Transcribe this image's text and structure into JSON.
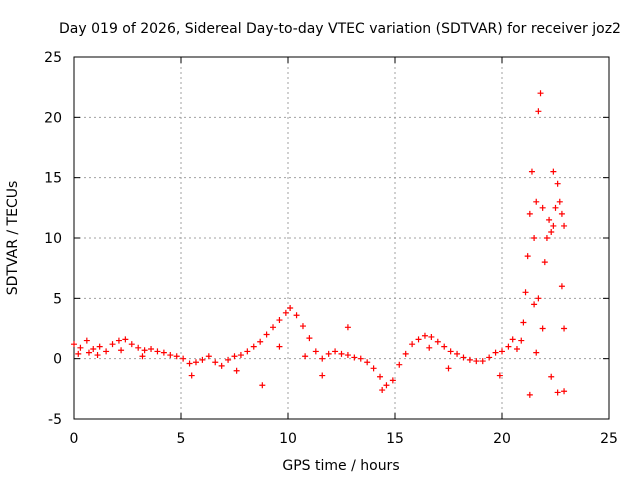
{
  "chart_data": {
    "type": "scatter",
    "title": "Day 019 of 2026, Sidereal Day-to-day VTEC variation (SDTVAR) for receiver joz2",
    "xlabel": "GPS time / hours",
    "ylabel": "SDTVAR / TECUs",
    "xlim": [
      0,
      25
    ],
    "ylim": [
      -5,
      25
    ],
    "x_ticks": [
      "0",
      "5",
      "10",
      "15",
      "20",
      "25"
    ],
    "y_ticks": [
      "-5",
      "0",
      "5",
      "10",
      "15",
      "20",
      "25"
    ],
    "grid": true,
    "marker": "+",
    "series_color": "#ff0000",
    "series": [
      {
        "name": "joz2",
        "points": [
          [
            0.0,
            1.2
          ],
          [
            0.3,
            0.9
          ],
          [
            0.6,
            1.5
          ],
          [
            0.9,
            0.8
          ],
          [
            1.2,
            1.0
          ],
          [
            1.5,
            0.6
          ],
          [
            1.8,
            1.2
          ],
          [
            2.1,
            1.5
          ],
          [
            2.4,
            1.6
          ],
          [
            2.7,
            1.2
          ],
          [
            3.0,
            0.9
          ],
          [
            3.3,
            0.7
          ],
          [
            3.6,
            0.8
          ],
          [
            3.9,
            0.6
          ],
          [
            4.2,
            0.5
          ],
          [
            4.5,
            0.3
          ],
          [
            4.8,
            0.2
          ],
          [
            5.1,
            0.0
          ],
          [
            5.4,
            -0.4
          ],
          [
            5.7,
            -0.3
          ],
          [
            6.0,
            -0.1
          ],
          [
            6.3,
            0.2
          ],
          [
            6.6,
            -0.3
          ],
          [
            6.9,
            -0.6
          ],
          [
            7.2,
            -0.1
          ],
          [
            7.5,
            0.2
          ],
          [
            7.8,
            0.3
          ],
          [
            8.1,
            0.6
          ],
          [
            8.4,
            1.0
          ],
          [
            8.7,
            1.4
          ],
          [
            9.0,
            2.0
          ],
          [
            9.3,
            2.6
          ],
          [
            9.6,
            3.2
          ],
          [
            9.9,
            3.8
          ],
          [
            10.1,
            4.2
          ],
          [
            10.4,
            3.6
          ],
          [
            10.7,
            2.7
          ],
          [
            11.0,
            1.7
          ],
          [
            11.3,
            0.6
          ],
          [
            11.6,
            0.0
          ],
          [
            11.9,
            0.4
          ],
          [
            12.2,
            0.6
          ],
          [
            12.5,
            0.4
          ],
          [
            12.8,
            0.3
          ],
          [
            13.1,
            0.1
          ],
          [
            13.4,
            0.0
          ],
          [
            13.7,
            -0.3
          ],
          [
            14.0,
            -0.8
          ],
          [
            14.3,
            -1.5
          ],
          [
            14.6,
            -2.2
          ],
          [
            14.9,
            -1.8
          ],
          [
            15.2,
            -0.5
          ],
          [
            15.5,
            0.4
          ],
          [
            15.8,
            1.2
          ],
          [
            16.1,
            1.6
          ],
          [
            16.4,
            1.9
          ],
          [
            16.7,
            1.8
          ],
          [
            17.0,
            1.4
          ],
          [
            17.3,
            1.0
          ],
          [
            17.6,
            0.6
          ],
          [
            17.9,
            0.4
          ],
          [
            18.2,
            0.1
          ],
          [
            18.5,
            -0.1
          ],
          [
            18.8,
            -0.2
          ],
          [
            19.1,
            -0.2
          ],
          [
            19.4,
            0.1
          ],
          [
            19.7,
            0.5
          ],
          [
            20.0,
            0.6
          ],
          [
            20.3,
            1.0
          ],
          [
            20.5,
            1.6
          ],
          [
            20.7,
            0.8
          ],
          [
            20.9,
            1.5
          ],
          [
            21.0,
            3.0
          ],
          [
            21.1,
            5.5
          ],
          [
            21.2,
            8.5
          ],
          [
            21.3,
            12.0
          ],
          [
            21.4,
            15.5
          ],
          [
            21.5,
            10.0
          ],
          [
            21.6,
            13.0
          ],
          [
            21.7,
            20.5
          ],
          [
            21.8,
            22.0
          ],
          [
            21.9,
            12.5
          ],
          [
            22.0,
            8.0
          ],
          [
            22.1,
            10.0
          ],
          [
            22.2,
            11.5
          ],
          [
            22.3,
            10.5
          ],
          [
            22.4,
            11.0
          ],
          [
            22.5,
            12.5
          ],
          [
            22.6,
            14.5
          ],
          [
            22.7,
            13.0
          ],
          [
            22.8,
            12.0
          ],
          [
            22.9,
            11.0
          ],
          [
            21.3,
            -3.0
          ],
          [
            21.5,
            4.5
          ],
          [
            21.6,
            0.5
          ],
          [
            21.7,
            5.0
          ],
          [
            21.9,
            2.5
          ],
          [
            22.3,
            -1.5
          ],
          [
            22.6,
            -2.8
          ],
          [
            22.9,
            -2.7
          ],
          [
            22.4,
            15.5
          ],
          [
            22.8,
            6.0
          ],
          [
            22.9,
            2.5
          ],
          [
            0.2,
            0.4
          ],
          [
            0.7,
            0.5
          ],
          [
            1.1,
            0.3
          ],
          [
            2.2,
            0.7
          ],
          [
            3.2,
            0.2
          ],
          [
            5.5,
            -1.4
          ],
          [
            7.6,
            -1.0
          ],
          [
            8.8,
            -2.2
          ],
          [
            9.6,
            1.0
          ],
          [
            10.8,
            0.2
          ],
          [
            11.6,
            -1.4
          ],
          [
            12.8,
            2.6
          ],
          [
            14.4,
            -2.6
          ],
          [
            16.6,
            0.9
          ],
          [
            17.5,
            -0.8
          ],
          [
            19.9,
            -1.4
          ]
        ]
      }
    ]
  }
}
